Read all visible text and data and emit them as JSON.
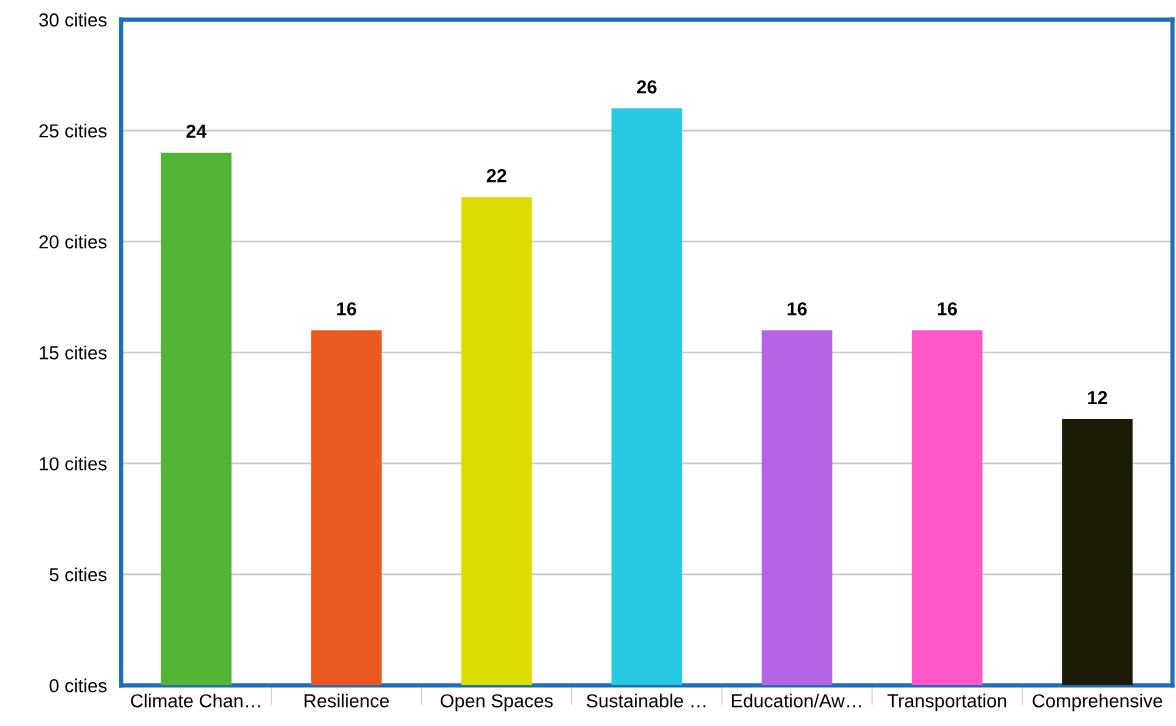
{
  "chart_data": {
    "type": "bar",
    "categories": [
      "Climate Chan…",
      "Resilience",
      "Open Spaces",
      "Sustainable …",
      "Education/Aw…",
      "Transportation",
      "Comprehensive"
    ],
    "values": [
      24,
      16,
      22,
      26,
      16,
      16,
      12
    ],
    "colors": [
      "#52b335",
      "#ea5a1f",
      "#dcdc00",
      "#27c9e3",
      "#b565e3",
      "#ff57c8",
      "#1c1a06"
    ],
    "ylim": [
      0,
      30
    ],
    "yticks": [
      {
        "value": 0,
        "label": "0 cities"
      },
      {
        "value": 5,
        "label": "5 cities"
      },
      {
        "value": 10,
        "label": "10 cities"
      },
      {
        "value": 15,
        "label": "15 cities"
      },
      {
        "value": 20,
        "label": "20 cities"
      },
      {
        "value": 25,
        "label": "25 cities"
      },
      {
        "value": 30,
        "label": "30 cities"
      }
    ],
    "grid": "y",
    "data_labels": true,
    "legend": false
  }
}
